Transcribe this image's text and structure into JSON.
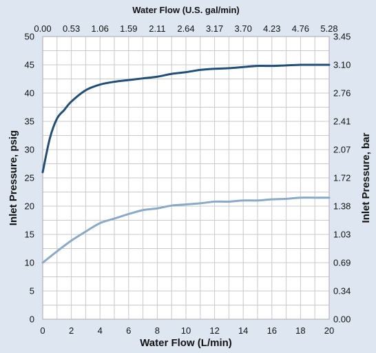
{
  "chart_data": {
    "type": "line",
    "title": "",
    "xlabel": "Water Flow (L/min)",
    "x2label": "Water Flow (U.S. gal/min)",
    "ylabel": "Inlet Pressure, psig",
    "y2label": "Inlet Pressure, bar",
    "xlim": [
      0,
      20
    ],
    "ylim": [
      0,
      50
    ],
    "grid": true,
    "legend": "none",
    "x_ticks": [
      "0",
      "2",
      "4",
      "6",
      "8",
      "10",
      "12",
      "14",
      "16",
      "18",
      "20"
    ],
    "x2_ticks": [
      "0.00",
      "0.53",
      "1.06",
      "1.59",
      "2.11",
      "2.64",
      "3.17",
      "3.70",
      "4.23",
      "4.76",
      "5.28"
    ],
    "y_ticks": [
      "0",
      "5",
      "10",
      "15",
      "20",
      "25",
      "30",
      "35",
      "40",
      "45",
      "50"
    ],
    "y2_ticks": [
      "0.00",
      "0.34",
      "0.69",
      "1.03",
      "1.38",
      "1.72",
      "2.07",
      "2.41",
      "2.76",
      "3.10",
      "3.45"
    ],
    "colors": {
      "background": "#dde6f1",
      "plot_bg": "#ffffff",
      "grid": "#c8c8c8",
      "dark_series": "#1f4e79",
      "light_series": "#8aa9c8"
    },
    "series": [
      {
        "color": "#1f4e79",
        "x": [
          0,
          0.5,
          1,
          1.5,
          2,
          3,
          4,
          5,
          6,
          7,
          8,
          9,
          10,
          11,
          12,
          13,
          14,
          15,
          16,
          17,
          18,
          19,
          20
        ],
        "y": [
          26,
          32,
          35.5,
          37,
          38.5,
          40.5,
          41.5,
          42,
          42.3,
          42.6,
          42.9,
          43.4,
          43.7,
          44.1,
          44.3,
          44.4,
          44.6,
          44.8,
          44.8,
          44.9,
          45,
          45,
          45
        ]
      },
      {
        "color": "#8aa9c8",
        "x": [
          0,
          1,
          2,
          3,
          4,
          5,
          6,
          7,
          8,
          9,
          10,
          11,
          12,
          13,
          14,
          15,
          16,
          17,
          18,
          19,
          20
        ],
        "y": [
          10,
          12,
          13.9,
          15.5,
          17,
          17.8,
          18.6,
          19.3,
          19.6,
          20.1,
          20.3,
          20.5,
          20.8,
          20.8,
          21,
          21,
          21.2,
          21.3,
          21.5,
          21.5,
          21.5
        ]
      }
    ]
  }
}
